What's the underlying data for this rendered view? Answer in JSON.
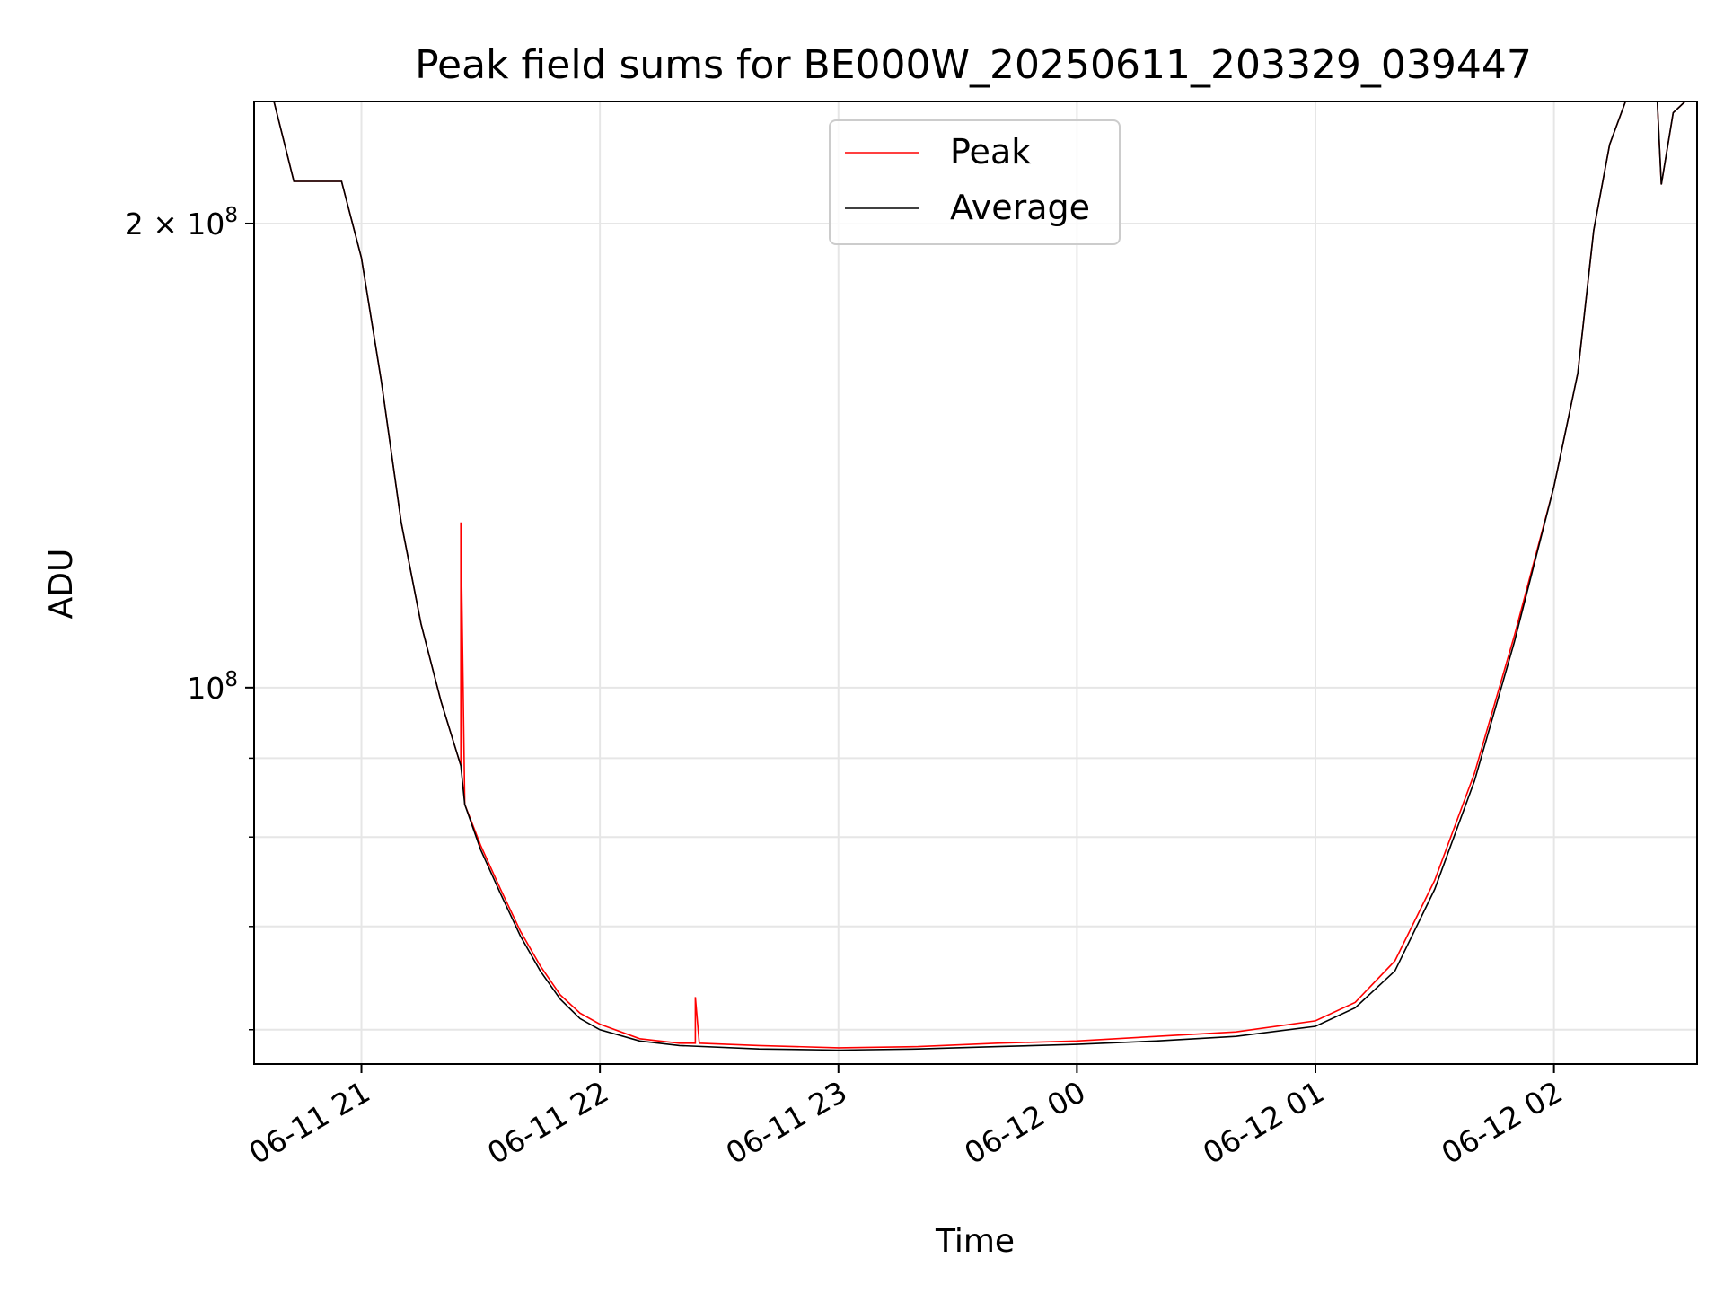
{
  "chart_data": {
    "type": "line",
    "title": "Peak field sums for BE000W_20250611_203329_039447",
    "xlabel": "Time",
    "ylabel": "ADU",
    "yscale": "log",
    "xlim": [
      "2025-06-11T20:33",
      "2025-06-12T02:36"
    ],
    "ylim": [
      57000000,
      240000000
    ],
    "grid": true,
    "legend_position": "top-center",
    "x_ticks": [
      {
        "t": "2025-06-11T21:00",
        "label": "06-11 21"
      },
      {
        "t": "2025-06-11T22:00",
        "label": "06-11 22"
      },
      {
        "t": "2025-06-11T23:00",
        "label": "06-11 23"
      },
      {
        "t": "2025-06-12T00:00",
        "label": "06-12 00"
      },
      {
        "t": "2025-06-12T01:00",
        "label": "06-12 01"
      },
      {
        "t": "2025-06-12T02:00",
        "label": "06-12 02"
      }
    ],
    "y_major_ticks": [
      {
        "v": 100000000,
        "base": "10",
        "exp": "8",
        "coef": ""
      },
      {
        "v": 200000000,
        "base": "10",
        "exp": "8",
        "coef": "2 × "
      }
    ],
    "y_minor_ticks": [
      60000000,
      70000000,
      80000000,
      90000000
    ],
    "series": [
      {
        "name": "Peak",
        "color": "#ff0000",
        "points": [
          [
            "2025-06-11T20:33",
            240000000
          ],
          [
            "2025-06-11T20:38",
            240000000
          ],
          [
            "2025-06-11T20:43",
            213000000
          ],
          [
            "2025-06-11T20:55",
            213000000
          ],
          [
            "2025-06-11T21:00",
            190000000
          ],
          [
            "2025-06-11T21:05",
            158000000
          ],
          [
            "2025-06-11T21:10",
            128000000
          ],
          [
            "2025-06-11T21:15",
            110000000
          ],
          [
            "2025-06-11T21:20",
            98000000
          ],
          [
            "2025-06-11T21:25",
            89000000
          ],
          [
            "2025-06-11T21:25",
            128000000
          ],
          [
            "2025-06-11T21:26",
            84000000
          ],
          [
            "2025-06-11T21:30",
            79000000
          ],
          [
            "2025-06-11T21:35",
            74000000
          ],
          [
            "2025-06-11T21:40",
            69500000
          ],
          [
            "2025-06-11T21:45",
            66000000
          ],
          [
            "2025-06-11T21:50",
            63200000
          ],
          [
            "2025-06-11T21:55",
            61500000
          ],
          [
            "2025-06-11T22:00",
            60500000
          ],
          [
            "2025-06-11T22:10",
            59200000
          ],
          [
            "2025-06-11T22:20",
            58800000
          ],
          [
            "2025-06-11T22:24",
            58800000
          ],
          [
            "2025-06-11T22:24",
            63000000
          ],
          [
            "2025-06-11T22:25",
            58800000
          ],
          [
            "2025-06-11T22:40",
            58600000
          ],
          [
            "2025-06-11T23:00",
            58400000
          ],
          [
            "2025-06-11T23:20",
            58500000
          ],
          [
            "2025-06-11T23:40",
            58800000
          ],
          [
            "2025-06-12T00:00",
            59000000
          ],
          [
            "2025-06-12T00:20",
            59400000
          ],
          [
            "2025-06-12T00:40",
            59800000
          ],
          [
            "2025-06-12T01:00",
            60800000
          ],
          [
            "2025-06-12T01:10",
            62500000
          ],
          [
            "2025-06-12T01:20",
            66500000
          ],
          [
            "2025-06-12T01:30",
            75000000
          ],
          [
            "2025-06-12T01:40",
            88000000
          ],
          [
            "2025-06-12T01:50",
            108000000
          ],
          [
            "2025-06-12T02:00",
            135000000
          ],
          [
            "2025-06-12T02:06",
            160000000
          ],
          [
            "2025-06-12T02:10",
            198000000
          ],
          [
            "2025-06-12T02:14",
            225000000
          ],
          [
            "2025-06-12T02:18",
            240000000
          ],
          [
            "2025-06-12T02:26",
            240000000
          ],
          [
            "2025-06-12T02:27",
            212000000
          ],
          [
            "2025-06-12T02:30",
            236000000
          ],
          [
            "2025-06-12T02:33",
            240000000
          ],
          [
            "2025-06-12T02:36",
            240000000
          ]
        ]
      },
      {
        "name": "Average",
        "color": "#000000",
        "points": [
          [
            "2025-06-11T20:33",
            240000000
          ],
          [
            "2025-06-11T20:38",
            240000000
          ],
          [
            "2025-06-11T20:43",
            213000000
          ],
          [
            "2025-06-11T20:55",
            213000000
          ],
          [
            "2025-06-11T21:00",
            190000000
          ],
          [
            "2025-06-11T21:05",
            158000000
          ],
          [
            "2025-06-11T21:10",
            128000000
          ],
          [
            "2025-06-11T21:15",
            110000000
          ],
          [
            "2025-06-11T21:20",
            98000000
          ],
          [
            "2025-06-11T21:25",
            89000000
          ],
          [
            "2025-06-11T21:26",
            84000000
          ],
          [
            "2025-06-11T21:30",
            78500000
          ],
          [
            "2025-06-11T21:35",
            73500000
          ],
          [
            "2025-06-11T21:40",
            69000000
          ],
          [
            "2025-06-11T21:45",
            65500000
          ],
          [
            "2025-06-11T21:50",
            62800000
          ],
          [
            "2025-06-11T21:55",
            61000000
          ],
          [
            "2025-06-11T22:00",
            60000000
          ],
          [
            "2025-06-11T22:10",
            59000000
          ],
          [
            "2025-06-11T22:20",
            58600000
          ],
          [
            "2025-06-11T22:40",
            58300000
          ],
          [
            "2025-06-11T23:00",
            58200000
          ],
          [
            "2025-06-11T23:20",
            58300000
          ],
          [
            "2025-06-11T23:40",
            58500000
          ],
          [
            "2025-06-12T00:00",
            58700000
          ],
          [
            "2025-06-12T00:20",
            59000000
          ],
          [
            "2025-06-12T00:40",
            59400000
          ],
          [
            "2025-06-12T01:00",
            60300000
          ],
          [
            "2025-06-12T01:10",
            62000000
          ],
          [
            "2025-06-12T01:20",
            65500000
          ],
          [
            "2025-06-12T01:30",
            74000000
          ],
          [
            "2025-06-12T01:40",
            87000000
          ],
          [
            "2025-06-12T01:50",
            107000000
          ],
          [
            "2025-06-12T02:00",
            135000000
          ],
          [
            "2025-06-12T02:06",
            160000000
          ],
          [
            "2025-06-12T02:10",
            198000000
          ],
          [
            "2025-06-12T02:14",
            225000000
          ],
          [
            "2025-06-12T02:18",
            240000000
          ],
          [
            "2025-06-12T02:26",
            240000000
          ],
          [
            "2025-06-12T02:27",
            212000000
          ],
          [
            "2025-06-12T02:30",
            236000000
          ],
          [
            "2025-06-12T02:33",
            240000000
          ],
          [
            "2025-06-12T02:36",
            240000000
          ]
        ]
      }
    ]
  }
}
